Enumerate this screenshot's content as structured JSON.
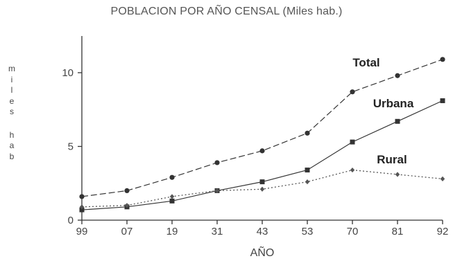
{
  "chart_data": {
    "type": "line",
    "title": "POBLACION POR AÑO CENSAL (Miles hab.)",
    "xlabel": "AÑO",
    "ylabel": "miles hab",
    "categories": [
      "99",
      "07",
      "19",
      "31",
      "43",
      "53",
      "70",
      "81",
      "92"
    ],
    "ylim": [
      0,
      12.5
    ],
    "yticks": [
      0,
      5,
      10
    ],
    "grid": false,
    "series": [
      {
        "name": "Total",
        "values": [
          1.6,
          2.0,
          2.9,
          3.9,
          4.7,
          5.9,
          8.7,
          9.8,
          10.9
        ],
        "style": "dashed",
        "marker": "circle",
        "color": "#333333"
      },
      {
        "name": "Urbana",
        "values": [
          0.7,
          0.9,
          1.3,
          2.0,
          2.6,
          3.4,
          5.3,
          6.7,
          8.1
        ],
        "style": "solid",
        "marker": "square",
        "color": "#333333"
      },
      {
        "name": "Rural",
        "values": [
          0.9,
          1.0,
          1.6,
          2.0,
          2.1,
          2.6,
          3.4,
          3.1,
          2.8
        ],
        "style": "dotted",
        "marker": "diamond",
        "color": "#555555"
      }
    ]
  }
}
